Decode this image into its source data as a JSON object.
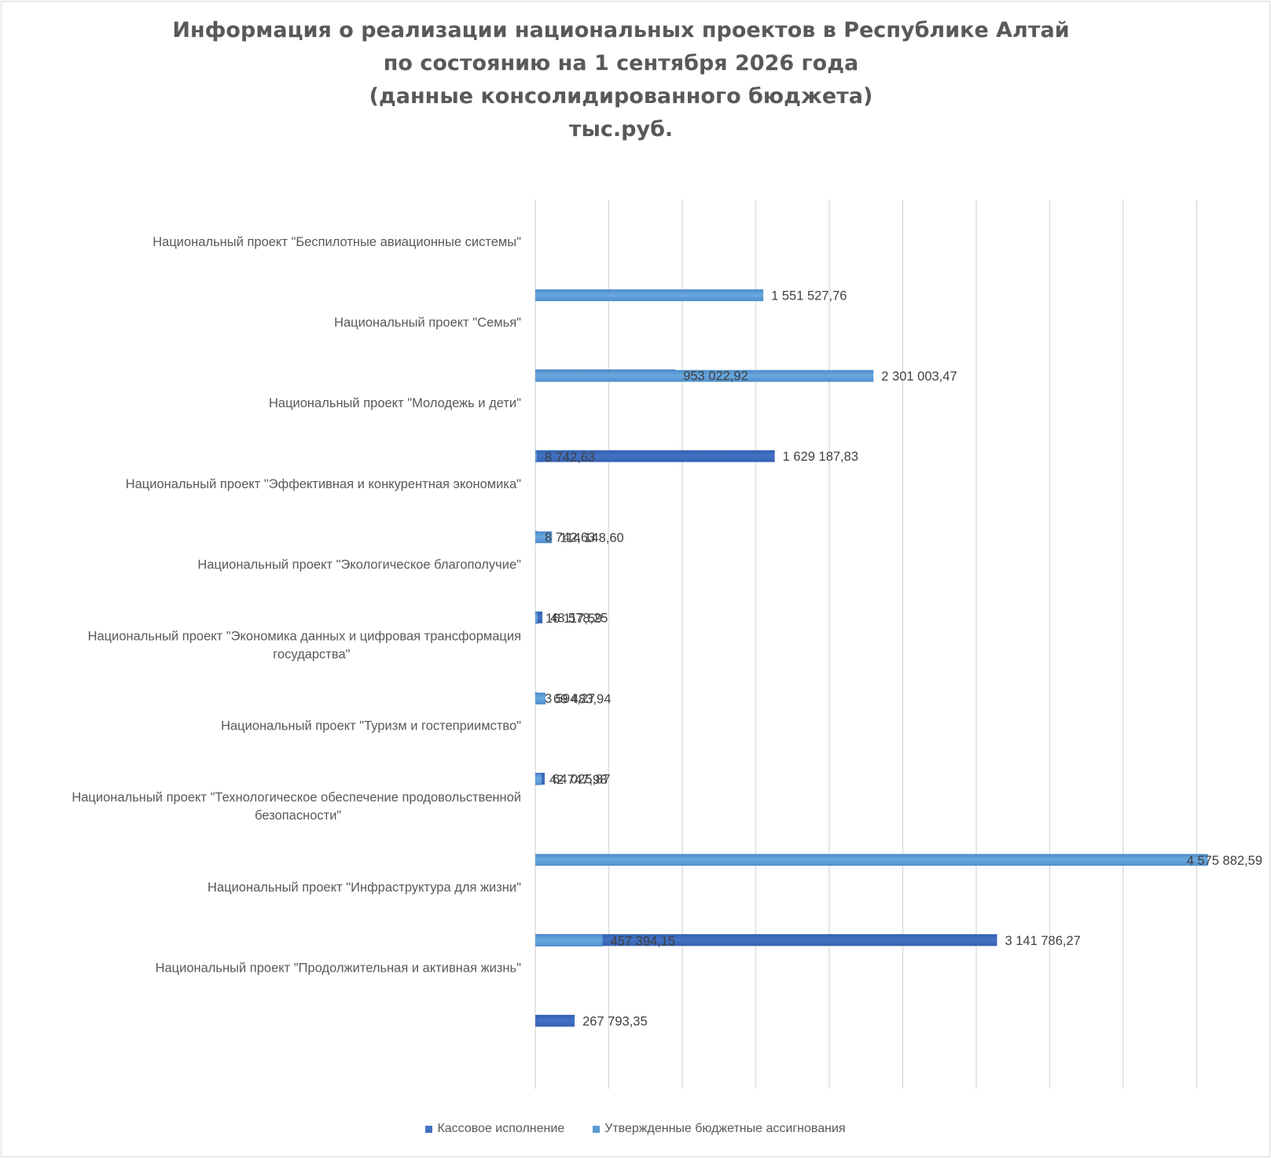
{
  "title_lines": [
    "Информация о реализации национальных проектов в Республике Алтай",
    "по состоянию на 1 сентября 2026 года",
    "(данные консолидированного бюджета)",
    "тыс.руб."
  ],
  "colors": {
    "executed": "#4472c4",
    "approved": "#5b9bd5",
    "gridline": "#d9d9d9",
    "text": "#595959"
  },
  "legend": {
    "executed": "Кассовое исполнение",
    "approved": "Утвержденные бюджетные ассигнования"
  },
  "chart_data": {
    "type": "bar",
    "orientation": "horizontal",
    "title": "Информация о реализации национальных проектов в Республике Алтай по состоянию на 1 сентября 2026 года (данные консолидированного бюджета) тыс.руб.",
    "categories": [
      "Национальный проект \"Беспилотные авиационные системы\"",
      "Национальный проект \"Семья\"",
      "Национальный проект \"Молодежь и дети\"",
      "Национальный проект \"Эффективная и конкурентная экономика\"",
      "Национальный проект \"Экологическое благополучие\"",
      "Национальный проект \"Экономика данных и цифровая трансформация государства\"",
      "Национальный проект \"Туризм и гостеприимство\"",
      "Национальный проект \"Технологическое обеспечение продовольственной безопасности\"",
      "Национальный проект \"Инфраструктура для жизни\"",
      "Национальный проект \"Продолжительная и активная жизнь\"",
      ""
    ],
    "category_lines": [
      [
        "Национальный проект \"Беспилотные авиационные системы\""
      ],
      [
        "Национальный проект \"Семья\""
      ],
      [
        "Национальный проект \"Молодежь и дети\""
      ],
      [
        "Национальный проект \"Эффективная и конкурентная экономика\""
      ],
      [
        "Национальный проект \"Экологическое благополучие\""
      ],
      [
        "Национальный проект \"Экономика данных и цифровая трансформация",
        "государства\""
      ],
      [
        "Национальный проект \"Туризм и гостеприимство\""
      ],
      [
        "Национальный проект \"Технологическое обеспечение продовольственной",
        "безопасности\""
      ],
      [
        "Национальный проект \"Инфраструктура для жизни\""
      ],
      [
        "Национальный проект \"Продолжительная и активная жизнь\""
      ],
      [
        ""
      ]
    ],
    "series": [
      {
        "name": "Кассовое исполнение",
        "values": [
          0,
          953022.92,
          1629187.83,
          8742.63,
          48578.25,
          3594.27,
          64025.87,
          0,
          3141786.27,
          267793.35,
          0
        ],
        "labels": [
          "",
          "953 022,92",
          "1 629 187,83",
          "8 742,63",
          "48 578,25",
          "3 594,27",
          "64 025,87",
          "",
          "3 141 786,27",
          "267 793,35",
          ""
        ]
      },
      {
        "name": "Утвержденные бюджетные ассигнования",
        "values": [
          0,
          1551527.76,
          2301003.47,
          8742.63,
          114148.6,
          16117.59,
          69483.94,
          42747.98,
          4575882.59,
          457394.15,
          0
        ],
        "labels": [
          "",
          "1 551 527,76",
          "2 301 003,47",
          "8 742,63",
          "114 148,60",
          "16 117,59",
          "69 483,94",
          "42 747,98",
          "4 575 882,59",
          "457 394,15",
          ""
        ]
      }
    ],
    "xlim": [
      0,
      5000000
    ],
    "x_ticks": [
      0,
      500000,
      1000000,
      1500000,
      2000000,
      2500000,
      3000000,
      3500000,
      4000000,
      4500000
    ],
    "x_tick_labels_shown": false,
    "grid": true,
    "legend_position": "bottom"
  }
}
